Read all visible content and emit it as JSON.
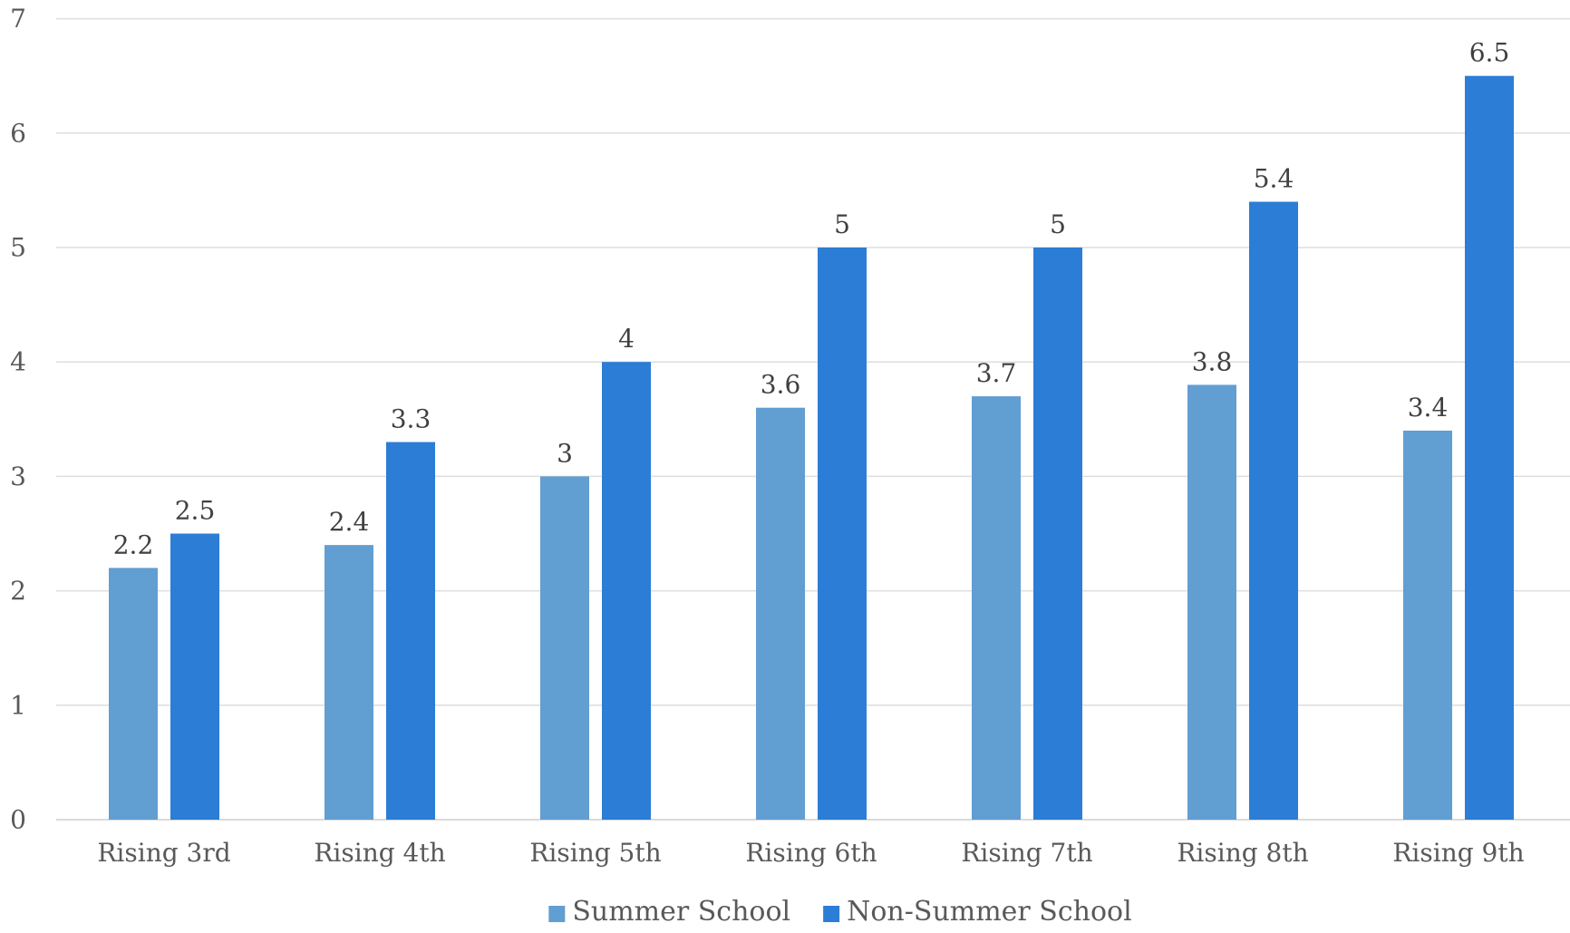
{
  "chart_data": {
    "type": "bar",
    "categories": [
      "Rising 3rd",
      "Rising 4th",
      "Rising 5th",
      "Rising 6th",
      "Rising 7th",
      "Rising 8th",
      "Rising 9th"
    ],
    "series": [
      {
        "name": "Summer School",
        "values": [
          2.2,
          2.4,
          3,
          3.6,
          3.7,
          3.8,
          3.4
        ],
        "color": "#619ed2"
      },
      {
        "name": "Non-Summer School",
        "values": [
          2.5,
          3.3,
          4,
          5,
          5,
          5.4,
          6.5
        ],
        "color": "#2b7dd6"
      }
    ],
    "data_labels": [
      [
        "2.2",
        "2.4",
        "3",
        "3.6",
        "3.7",
        "3.8",
        "3.4"
      ],
      [
        "2.5",
        "3.3",
        "4",
        "5",
        "5",
        "5.4",
        "6.5"
      ]
    ],
    "y_ticks": [
      "0",
      "1",
      "2",
      "3",
      "4",
      "5",
      "6",
      "7"
    ],
    "ylim": [
      0,
      7
    ],
    "title": "",
    "xlabel": "",
    "ylabel": "",
    "grid": true,
    "legend_position": "bottom"
  }
}
